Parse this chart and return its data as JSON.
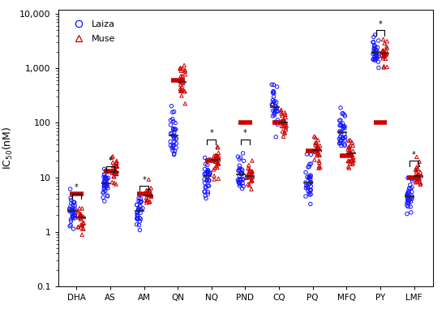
{
  "drugs": [
    "DHA",
    "AS",
    "AM",
    "QN",
    "NQ",
    "PND",
    "CQ",
    "PQ",
    "MFQ",
    "PY",
    "LMF"
  ],
  "drug_params": {
    "DHA": {
      "lm": 2.3,
      "ls": 0.3,
      "ln": 35,
      "mm": 1.8,
      "ms": 0.3,
      "mn": 25,
      "red_bar": 5.0,
      "laiza_dark": 2.3
    },
    "AS": {
      "lm": 8.0,
      "ls": 0.35,
      "ln": 35,
      "mm": 13.0,
      "ms": 0.3,
      "mn": 25,
      "red_bar": 13.0,
      "laiza_dark": 8.0
    },
    "AM": {
      "lm": 2.5,
      "ls": 0.35,
      "ln": 30,
      "mm": 5.0,
      "ms": 0.3,
      "mn": 20,
      "red_bar": 5.0,
      "laiza_dark": 2.5
    },
    "QN": {
      "lm": 55,
      "ls": 0.5,
      "ln": 35,
      "mm": 600,
      "ms": 0.4,
      "mn": 25,
      "red_bar": 600,
      "laiza_dark": 55
    },
    "NQ": {
      "lm": 10,
      "ls": 0.4,
      "ln": 35,
      "mm": 20,
      "ms": 0.4,
      "mn": 25,
      "red_bar": 20,
      "laiza_dark": 10
    },
    "PND": {
      "lm": 11,
      "ls": 0.4,
      "ln": 35,
      "mm": 11,
      "ms": 0.4,
      "mn": 25,
      "red_bar": 100,
      "laiza_dark": 11
    },
    "CQ": {
      "lm": 200,
      "ls": 0.45,
      "ln": 35,
      "mm": 100,
      "ms": 0.45,
      "mn": 25,
      "red_bar": 100,
      "laiza_dark": 200
    },
    "PQ": {
      "lm": 8,
      "ls": 0.45,
      "ln": 35,
      "mm": 30,
      "ms": 0.4,
      "mn": 25,
      "red_bar": 30,
      "laiza_dark": 8
    },
    "MFQ": {
      "lm": 70,
      "ls": 0.45,
      "ln": 35,
      "mm": 25,
      "ms": 0.4,
      "mn": 25,
      "red_bar": 25,
      "laiza_dark": 70
    },
    "PY": {
      "lm": 2000,
      "ls": 0.3,
      "ln": 35,
      "mm": 1800,
      "ms": 0.3,
      "mn": 25,
      "red_bar": 100,
      "laiza_dark": 2000
    },
    "LMF": {
      "lm": 4.5,
      "ls": 0.4,
      "ln": 35,
      "mm": 10.0,
      "ms": 0.35,
      "mn": 25,
      "red_bar": 10.0,
      "laiza_dark": 4.5
    }
  },
  "significance": {
    "DHA": {
      "y": 5.0,
      "show": true
    },
    "AS": {
      "y": 16.0,
      "show": true
    },
    "AM": {
      "y": 7.0,
      "show": true
    },
    "QN": {
      "y": null,
      "show": false
    },
    "NQ": {
      "y": 50,
      "show": true
    },
    "PND": {
      "y": 50,
      "show": true
    },
    "CQ": {
      "y": null,
      "show": false
    },
    "PQ": {
      "y": null,
      "show": false
    },
    "MFQ": {
      "y": null,
      "show": false
    },
    "PY": {
      "y": 5000,
      "show": true
    },
    "LMF": {
      "y": 20,
      "show": true
    }
  },
  "laiza_color": "#1515FF",
  "muse_color": "#CC0000",
  "red_bar_color": "#CC0000",
  "dark_bar_color": "#222222",
  "ylim_low": 0.1,
  "ylim_high": 12000,
  "ylabel": "IC$_{50}$(nM)",
  "yticks": [
    0.1,
    1,
    10,
    100,
    1000,
    10000
  ],
  "yticklabels": [
    "0.1",
    "1",
    "10",
    "100",
    "1,000",
    "10,000"
  ]
}
